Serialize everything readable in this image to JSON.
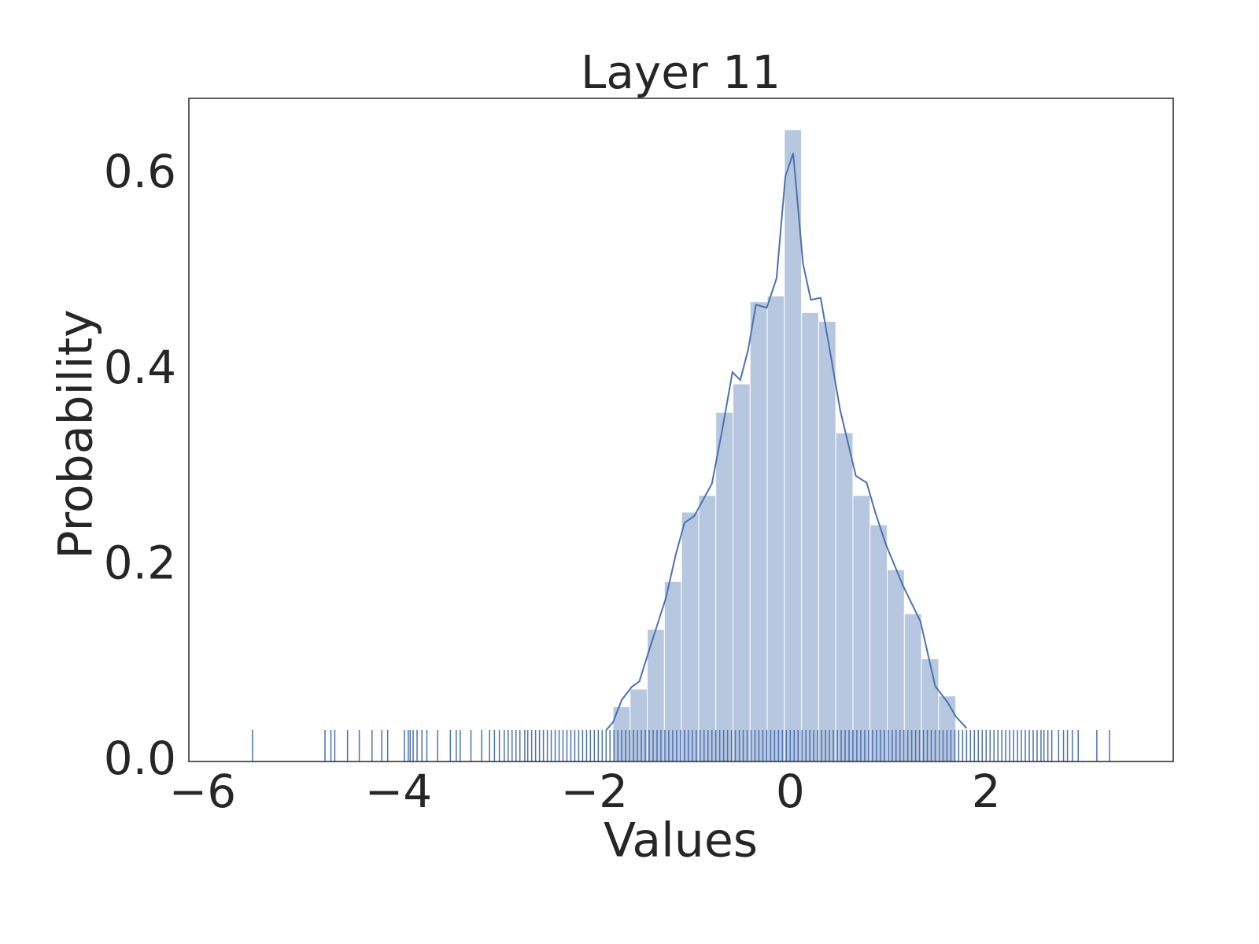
{
  "chart_data": {
    "type": "histogram",
    "title": "Layer 11",
    "x_label": "Values",
    "y_label": "Probability",
    "xlim": [
      -6.14,
      3.91
    ],
    "ylim": [
      0,
      0.678
    ],
    "xticks": [
      {
        "value": -6,
        "label": "−6"
      },
      {
        "value": -4,
        "label": "−4"
      },
      {
        "value": -2,
        "label": "−2"
      },
      0,
      2
    ],
    "yticks": [
      {
        "value": 0,
        "label": "0.0"
      },
      0.2,
      0.4,
      0.6
    ],
    "color": "#4c72b0",
    "bins": [
      -1.81,
      -1.635,
      -1.46,
      -1.285,
      -1.11,
      -0.935,
      -0.76,
      -0.585,
      -0.41,
      -0.235,
      -0.06,
      0.115,
      0.29,
      0.465,
      0.64,
      0.815,
      0.99,
      1.165,
      1.34,
      1.515,
      1.69
    ],
    "values": [
      0.056,
      0.074,
      0.135,
      0.184,
      0.255,
      0.272,
      0.357,
      0.386,
      0.47,
      0.476,
      0.646,
      0.459,
      0.45,
      0.336,
      0.272,
      0.242,
      0.196,
      0.151,
      0.105,
      0.067
    ],
    "kde": {
      "x": [
        -1.88,
        -1.81,
        -1.72,
        -1.62,
        -1.54,
        -1.44,
        -1.27,
        -1.17,
        -1.08,
        -0.98,
        -0.8,
        -0.7,
        -0.59,
        -0.51,
        -0.43,
        -0.35,
        -0.24,
        -0.14,
        -0.05,
        0.03,
        0.13,
        0.21,
        0.31,
        0.41,
        0.51,
        0.67,
        0.78,
        0.87,
        0.98,
        1.15,
        1.33,
        1.48,
        1.61,
        1.69,
        1.8
      ],
      "y": [
        0.032,
        0.04,
        0.063,
        0.076,
        0.082,
        0.114,
        0.167,
        0.211,
        0.244,
        0.251,
        0.284,
        0.336,
        0.398,
        0.39,
        0.421,
        0.467,
        0.464,
        0.494,
        0.598,
        0.622,
        0.509,
        0.472,
        0.474,
        0.417,
        0.359,
        0.292,
        0.285,
        0.254,
        0.221,
        0.18,
        0.143,
        0.077,
        0.06,
        0.046,
        0.034
      ]
    },
    "rug": [
      -5.49,
      -4.75,
      -4.69,
      -4.65,
      -4.52,
      -4.4,
      -4.27,
      -4.17,
      -4.11,
      -3.94,
      -3.9,
      -3.88,
      -3.85,
      -3.81,
      -3.76,
      -3.71,
      -3.6,
      -3.47,
      -3.41,
      -3.37,
      -3.26,
      -3.15,
      -3.07,
      -3.02,
      -2.97,
      -2.92,
      -2.88,
      -2.84,
      -2.8,
      -2.76,
      -2.71,
      -2.68,
      -2.64,
      -2.6,
      -2.56,
      -2.52,
      -2.48,
      -2.44,
      -2.4,
      -2.36,
      -2.32,
      -2.28,
      -2.24,
      -2.2,
      -2.16,
      -2.12,
      -2.08,
      -2.04,
      -2,
      -1.96,
      -1.92,
      -1.88,
      -1.84,
      -1.8,
      -1.76,
      -1.72,
      -1.68,
      -1.64,
      -1.6,
      -1.56,
      -1.52,
      -1.48,
      -1.44,
      -1.4,
      -1.36,
      -1.32,
      -1.28,
      -1.24,
      -1.2,
      -1.16,
      -1.12,
      -1.08,
      -1.04,
      -1,
      -0.96,
      -0.92,
      -0.88,
      -0.84,
      -0.8,
      -0.76,
      -0.72,
      -0.68,
      -0.64,
      -0.6,
      -0.56,
      -0.52,
      -0.48,
      -0.44,
      -0.4,
      -0.36,
      -0.32,
      -0.28,
      -0.24,
      -0.2,
      -0.16,
      -0.12,
      -0.08,
      -0.04,
      0,
      0.04,
      0.08,
      0.12,
      0.16,
      0.2,
      0.24,
      0.28,
      0.32,
      0.36,
      0.4,
      0.44,
      0.48,
      0.52,
      0.56,
      0.6,
      0.64,
      0.68,
      0.72,
      0.76,
      0.8,
      0.84,
      0.88,
      0.92,
      0.96,
      1,
      1.04,
      1.08,
      1.12,
      1.16,
      1.2,
      1.24,
      1.28,
      1.32,
      1.36,
      1.4,
      1.44,
      1.48,
      1.52,
      1.56,
      1.6,
      1.64,
      1.68,
      1.72,
      1.76,
      1.8,
      1.84,
      1.88,
      1.92,
      1.96,
      2,
      2.04,
      2.08,
      2.12,
      2.16,
      2.2,
      2.24,
      2.28,
      2.32,
      2.36,
      2.4,
      2.44,
      2.48,
      2.52,
      2.56,
      2.59,
      2.63,
      2.67,
      2.74,
      2.79,
      2.83,
      2.88,
      2.94,
      3.13,
      3.26
    ]
  }
}
